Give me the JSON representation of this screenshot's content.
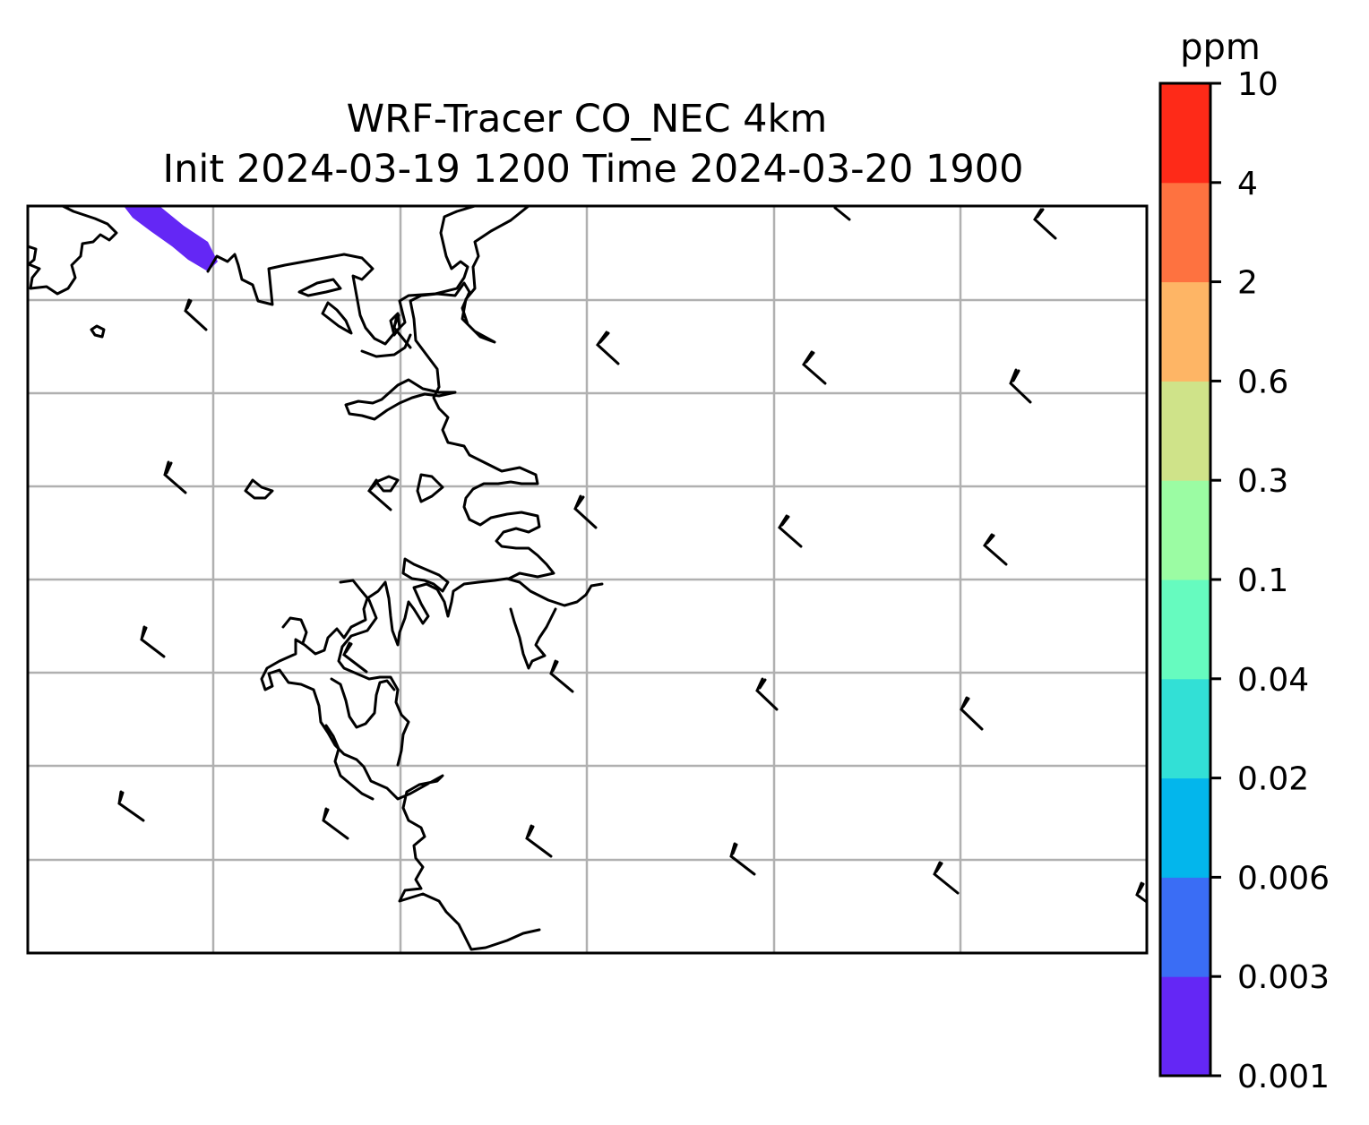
{
  "title": {
    "line1": "WRF-Tracer CO_NEC 4km",
    "line2": "Init 2024-03-19 1200 Time 2024-03-20 1900"
  },
  "colorbar": {
    "unit_label": "ppm",
    "tick_labels": [
      "0.001",
      "0.003",
      "0.006",
      "0.02",
      "0.04",
      "0.1",
      "0.3",
      "0.6",
      "2",
      "4",
      "10"
    ],
    "levels": [
      {
        "from": "0.001",
        "to": "0.003",
        "color": "#6427f5"
      },
      {
        "from": "0.003",
        "to": "0.006",
        "color": "#3a6df5"
      },
      {
        "from": "0.006",
        "to": "0.02",
        "color": "#03b6ec"
      },
      {
        "from": "0.02",
        "to": "0.04",
        "color": "#32e0d6"
      },
      {
        "from": "0.04",
        "to": "0.1",
        "color": "#66fbbf"
      },
      {
        "from": "0.1",
        "to": "0.3",
        "color": "#9bfca3"
      },
      {
        "from": "0.3",
        "to": "0.6",
        "color": "#cfe389"
      },
      {
        "from": "0.6",
        "to": "2",
        "color": "#feb565"
      },
      {
        "from": "2",
        "to": "4",
        "color": "#fe7240"
      },
      {
        "from": "4",
        "to": "10",
        "color": "#fe2a18"
      }
    ]
  },
  "map": {
    "gridlines": true,
    "coastlines": true,
    "plume_level": "0.001-0.003",
    "plume_color": "#6427f5",
    "wind_barbs": "northwest, 10-15 kt"
  }
}
